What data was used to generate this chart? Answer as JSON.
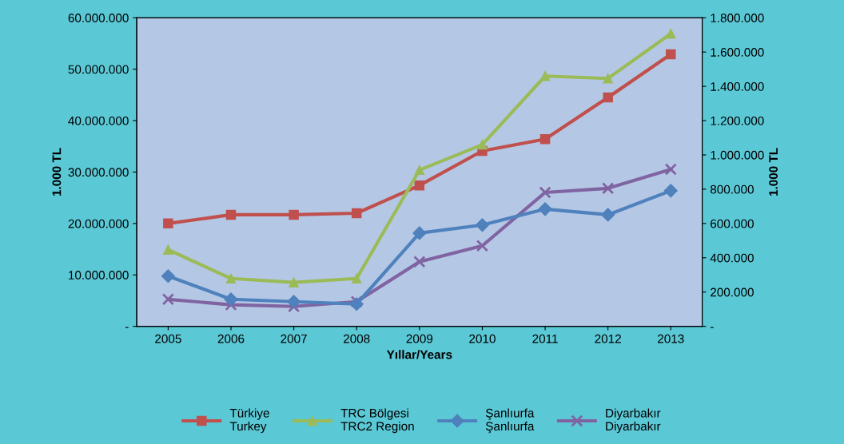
{
  "chart_data": {
    "type": "line",
    "xlabel": "Yıllar/Years",
    "ylabel": "1.000 TL",
    "y2label": "1.000 TL",
    "categories": [
      "2005",
      "2006",
      "2007",
      "2008",
      "2009",
      "2010",
      "2011",
      "2012",
      "2013"
    ],
    "series": [
      {
        "name": "Türkiye\nTurkey",
        "color": "#c0504d",
        "marker": "square",
        "values": [
          20000000,
          21700000,
          21700000,
          22000000,
          27400000,
          34100000,
          36400000,
          44500000,
          52900000
        ]
      },
      {
        "name": "TRC Bölgesi\nTRC2 Region",
        "color": "#9bbb59",
        "marker": "triangle",
        "axis": "y2",
        "values": [
          447000,
          279000,
          256000,
          279000,
          912000,
          1060000,
          1460000,
          1446000,
          1707000
        ]
      },
      {
        "name": "Şanlıurfa\nŞanlıurfa",
        "color": "#4f81bd",
        "marker": "diamond",
        "axis": "y2",
        "values": [
          293000,
          158000,
          144000,
          130000,
          544000,
          591000,
          684000,
          651000,
          791000
        ]
      },
      {
        "name": "Diyarbakır\nDiyarbakır",
        "color": "#8064a2",
        "marker": "cross",
        "axis": "y2",
        "values": [
          158000,
          126000,
          116000,
          144000,
          377000,
          470000,
          781000,
          805000,
          916000
        ]
      }
    ],
    "ylim": [
      0,
      60000000
    ],
    "yticks": [
      {
        "value": 0,
        "label": "-"
      },
      {
        "value": 10000000,
        "label": "10.000.000"
      },
      {
        "value": 20000000,
        "label": "20.000.000"
      },
      {
        "value": 30000000,
        "label": "30.000.000"
      },
      {
        "value": 40000000,
        "label": "40.000.000"
      },
      {
        "value": 50000000,
        "label": "50.000.000"
      },
      {
        "value": 60000000,
        "label": "60.000.000"
      }
    ],
    "y2lim": [
      0,
      1800000
    ],
    "y2ticks": [
      {
        "value": 0,
        "label": "-"
      },
      {
        "value": 200000,
        "label": "200.000"
      },
      {
        "value": 400000,
        "label": "400.000"
      },
      {
        "value": 600000,
        "label": "600.000"
      },
      {
        "value": 800000,
        "label": "800.000"
      },
      {
        "value": 1000000,
        "label": "1.000.000"
      },
      {
        "value": 1200000,
        "label": "1.200.000"
      },
      {
        "value": 1400000,
        "label": "1.400.000"
      },
      {
        "value": 1600000,
        "label": "1.600.000"
      },
      {
        "value": 1800000,
        "label": "1.800.000"
      }
    ],
    "grid": false,
    "legend": "bottom",
    "line_style": "solid"
  }
}
